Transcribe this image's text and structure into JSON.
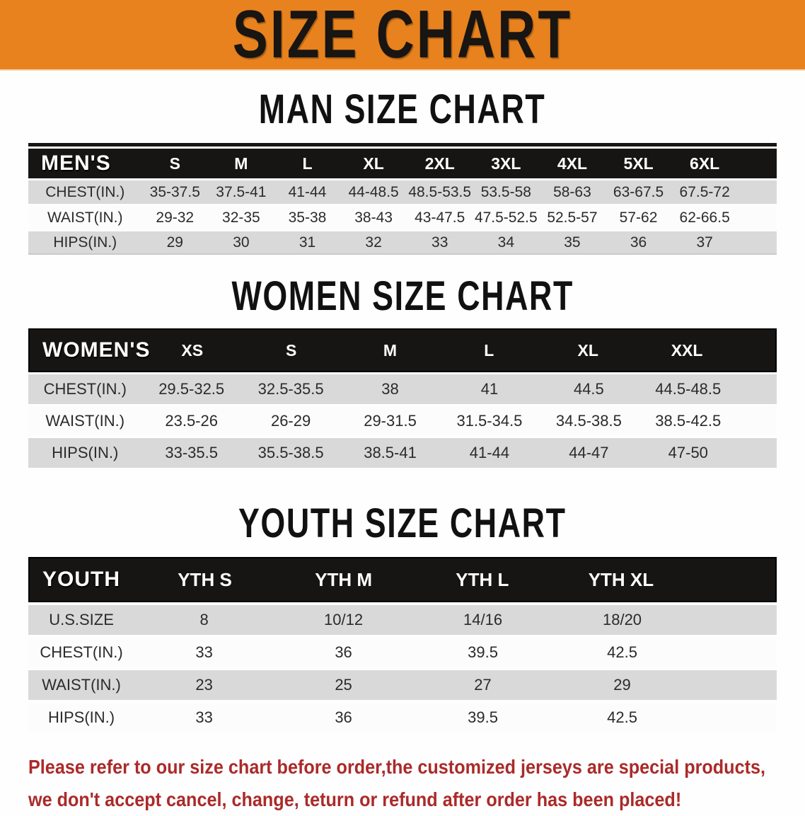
{
  "banner": {
    "title": "SIZE CHART",
    "bg_color": "#E8821E",
    "text_color": "#181512"
  },
  "sections": {
    "men": {
      "heading": "MAN SIZE CHART",
      "table": {
        "header_label": "MEN'S",
        "columns": [
          "S",
          "M",
          "L",
          "XL",
          "2XL",
          "3XL",
          "4XL",
          "5XL",
          "6XL"
        ],
        "rows": [
          {
            "label": "CHEST(IN.)",
            "values": [
              "35-37.5",
              "37.5-41",
              "41-44",
              "44-48.5",
              "48.5-53.5",
              "53.5-58",
              "58-63",
              "63-67.5",
              "67.5-72"
            ]
          },
          {
            "label": "WAIST(IN.)",
            "values": [
              "29-32",
              "32-35",
              "35-38",
              "38-43",
              "43-47.5",
              "47.5-52.5",
              "52.5-57",
              "57-62",
              "62-66.5"
            ]
          },
          {
            "label": "HIPS(IN.)",
            "values": [
              "29",
              "30",
              "31",
              "32",
              "33",
              "34",
              "35",
              "36",
              "37"
            ]
          }
        ]
      }
    },
    "women": {
      "heading": "WOMEN SIZE CHART",
      "table": {
        "header_label": "WOMEN'S",
        "columns": [
          "XS",
          "S",
          "M",
          "L",
          "XL",
          "XXL"
        ],
        "rows": [
          {
            "label": "CHEST(IN.)",
            "values": [
              "29.5-32.5",
              "32.5-35.5",
              "38",
              "41",
              "44.5",
              "44.5-48.5"
            ]
          },
          {
            "label": "WAIST(IN.)",
            "values": [
              "23.5-26",
              "26-29",
              "29-31.5",
              "31.5-34.5",
              "34.5-38.5",
              "38.5-42.5"
            ]
          },
          {
            "label": "HIPS(IN.)",
            "values": [
              "33-35.5",
              "35.5-38.5",
              "38.5-41",
              "41-44",
              "44-47",
              "47-50"
            ]
          }
        ]
      }
    },
    "youth": {
      "heading": "YOUTH SIZE CHART",
      "table": {
        "header_label": "YOUTH",
        "columns": [
          "YTH S",
          "YTH M",
          "YTH L",
          "YTH XL"
        ],
        "rows": [
          {
            "label": "U.S.SIZE",
            "values": [
              "8",
              "10/12",
              "14/16",
              "18/20"
            ]
          },
          {
            "label": "CHEST(IN.)",
            "values": [
              "33",
              "36",
              "39.5",
              "42.5"
            ]
          },
          {
            "label": "WAIST(IN.)",
            "values": [
              "23",
              "25",
              "27",
              "29"
            ]
          },
          {
            "label": "HIPS(IN.)",
            "values": [
              "33",
              "36",
              "39.5",
              "42.5"
            ]
          }
        ]
      }
    }
  },
  "footer_note": {
    "line1": "Please refer to our size chart before order,the customized jerseys are special products,",
    "line2": "we don't accept cancel, change, teturn or refund after order has been placed!",
    "color": "#AB2A2A"
  }
}
